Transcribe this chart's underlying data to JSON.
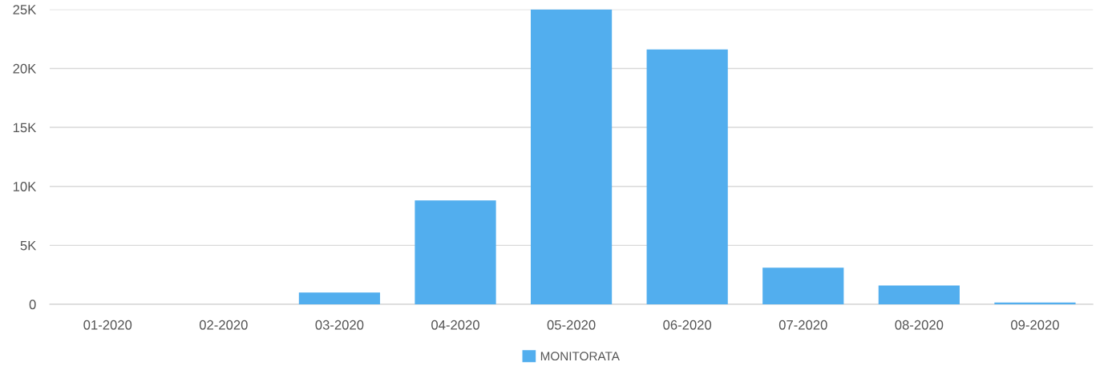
{
  "chart_data": {
    "type": "bar",
    "categories": [
      "01-2020",
      "02-2020",
      "03-2020",
      "04-2020",
      "05-2020",
      "06-2020",
      "07-2020",
      "08-2020",
      "09-2020"
    ],
    "series": [
      {
        "name": "MONITORATA",
        "color": "#52aeee",
        "values": [
          0,
          0,
          1000,
          8800,
          25000,
          21600,
          3100,
          1600,
          150
        ]
      }
    ],
    "ylim": [
      0,
      25000
    ],
    "yticks": [
      {
        "value": 0,
        "label": "0"
      },
      {
        "value": 5000,
        "label": "5K"
      },
      {
        "value": 10000,
        "label": "10K"
      },
      {
        "value": 15000,
        "label": "15K"
      },
      {
        "value": 20000,
        "label": "20K"
      },
      {
        "value": 25000,
        "label": "25K"
      }
    ],
    "grid": "y",
    "legend": "bottom"
  }
}
